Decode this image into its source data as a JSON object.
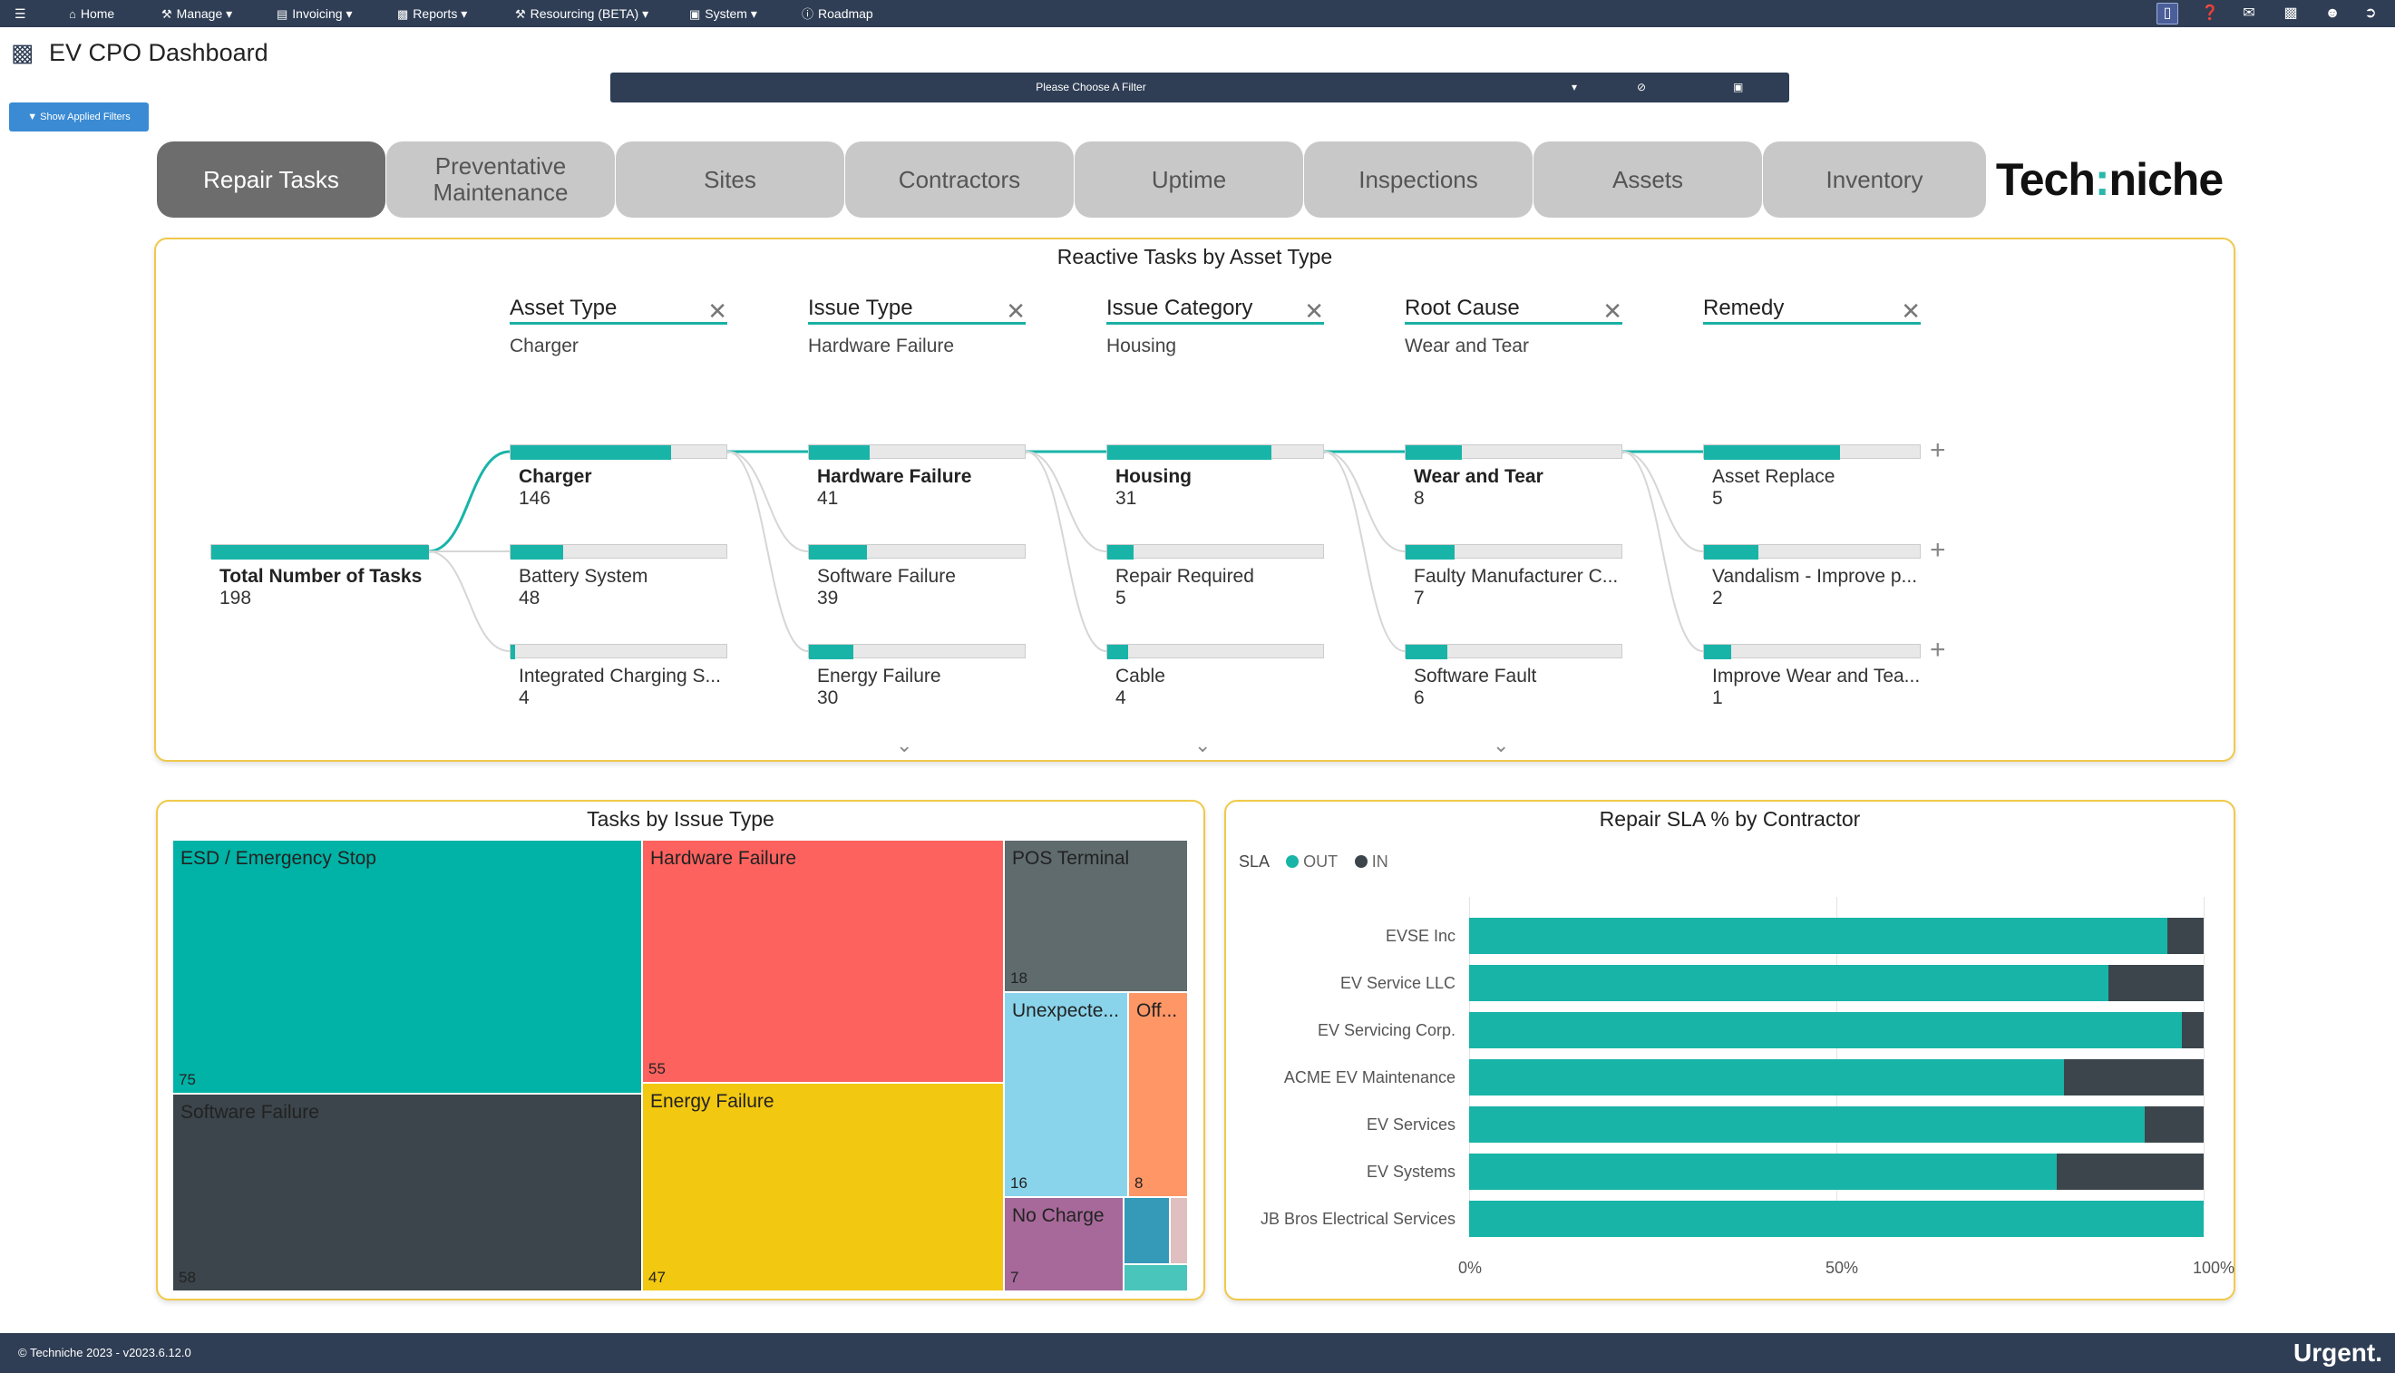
{
  "nav": {
    "menus": [
      {
        "icon": "home-icon",
        "label": "Home",
        "caret": false
      },
      {
        "icon": "wrench-icon",
        "label": "Manage",
        "caret": true
      },
      {
        "icon": "invoice-icon",
        "label": "Invoicing",
        "caret": true
      },
      {
        "icon": "bar-chart-icon",
        "label": "Reports",
        "caret": true
      },
      {
        "icon": "wrench-icon",
        "label": "Resourcing (BETA)",
        "caret": true
      },
      {
        "icon": "monitor-icon",
        "label": "System",
        "caret": true
      },
      {
        "icon": "info-icon",
        "label": "Roadmap",
        "caret": false
      }
    ],
    "right_icons": [
      "mobile-icon",
      "help-icon",
      "chat-icon",
      "bar-chart-icon",
      "user-icon",
      "logout-icon"
    ]
  },
  "page": {
    "title": "EV CPO Dashboard",
    "filter_placeholder": "Please Choose A Filter",
    "applied_filters_label": "Show Applied Filters"
  },
  "tabs": [
    "Repair Tasks",
    "Preventative Maintenance",
    "Sites",
    "Contractors",
    "Uptime",
    "Inspections",
    "Assets",
    "Inventory"
  ],
  "active_tab": "Repair Tasks",
  "logo": {
    "part1": "Tech",
    "colon": ":",
    "part2": "niche"
  },
  "decomposition": {
    "title": "Reactive Tasks by Asset Type",
    "root": {
      "label": "Total Number of Tasks",
      "value": 198
    },
    "levels": [
      {
        "header": "Asset Type",
        "selected": "Charger",
        "nodes": [
          {
            "label": "Charger",
            "value": 146
          },
          {
            "label": "Battery System",
            "value": 48
          },
          {
            "label": "Integrated Charging S...",
            "value": 4
          }
        ]
      },
      {
        "header": "Issue Type",
        "selected": "Hardware Failure",
        "nodes": [
          {
            "label": "Hardware Failure",
            "value": 41
          },
          {
            "label": "Software Failure",
            "value": 39
          },
          {
            "label": "Energy Failure",
            "value": 30
          }
        ]
      },
      {
        "header": "Issue Category",
        "selected": "Housing",
        "nodes": [
          {
            "label": "Housing",
            "value": 31
          },
          {
            "label": "Repair Required",
            "value": 5
          },
          {
            "label": "Cable",
            "value": 4
          }
        ]
      },
      {
        "header": "Root Cause",
        "selected": "Wear and Tear",
        "nodes": [
          {
            "label": "Wear and Tear",
            "value": 8
          },
          {
            "label": "Faulty Manufacturer C...",
            "value": 7
          },
          {
            "label": "Software Fault",
            "value": 6
          }
        ]
      },
      {
        "header": "Remedy",
        "selected": "",
        "nodes": [
          {
            "label": "Asset Replace",
            "value": 5
          },
          {
            "label": "Vandalism - Improve p...",
            "value": 2
          },
          {
            "label": "Improve Wear and Tea...",
            "value": 1
          }
        ]
      }
    ]
  },
  "treemap": {
    "title": "Tasks by Issue Type",
    "items": [
      {
        "label": "ESD / Emergency Stop",
        "value": 75,
        "color": "#00b3a6"
      },
      {
        "label": "Software Failure",
        "value": 58,
        "color": "#3b454b"
      },
      {
        "label": "Hardware Failure",
        "value": 55,
        "color": "#fd625e"
      },
      {
        "label": "Energy Failure",
        "value": 47,
        "color": "#f2c811"
      },
      {
        "label": "POS Terminal",
        "value": 18,
        "color": "#5f6b6d"
      },
      {
        "label": "Unexpecte...",
        "value": 16,
        "color": "#8ad4eb"
      },
      {
        "label": "Off...",
        "value": 8,
        "color": "#fe9666"
      },
      {
        "label": "No Charge",
        "value": 7,
        "color": "#a66999"
      },
      {
        "label": "",
        "value": null,
        "color": "#3599b8"
      },
      {
        "label": "",
        "value": null,
        "color": "#dfbfbf"
      },
      {
        "label": "",
        "value": null,
        "color": "#4ac5bb"
      }
    ]
  },
  "sla_chart": {
    "title": "Repair SLA % by Contractor",
    "legend_title": "SLA",
    "legend": [
      {
        "name": "OUT",
        "color": "#19b4a8"
      },
      {
        "name": "IN",
        "color": "#3b454b"
      }
    ],
    "ticks": [
      "0%",
      "50%",
      "100%"
    ]
  },
  "chart_data": {
    "type": "bar",
    "orientation": "horizontal",
    "stacked": true,
    "title": "Repair SLA % by Contractor",
    "categories": [
      "EVSE Inc",
      "EV Service LLC",
      "EV Servicing Corp.",
      "ACME EV Maintenance",
      "EV Services",
      "EV Systems",
      "JB Bros Electrical Services"
    ],
    "series": [
      {
        "name": "OUT",
        "values": [
          95,
          87,
          97,
          81,
          92,
          80,
          100
        ]
      },
      {
        "name": "IN",
        "values": [
          5,
          13,
          3,
          19,
          8,
          20,
          0
        ]
      }
    ],
    "xlim": [
      0,
      100
    ],
    "legend_position": "top-left"
  },
  "footer": {
    "copyright": "© Techniche 2023 - v2023.6.12.0",
    "brand": "Urgent."
  }
}
